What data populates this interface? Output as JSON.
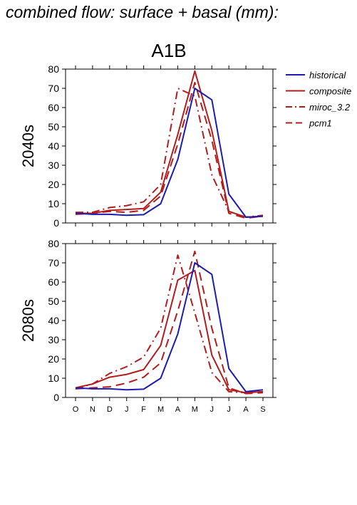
{
  "figure_title": "combined flow: surface + basal (mm):",
  "chart_data": [
    {
      "type": "line",
      "panel_title": "A1B",
      "row_label": "2040s",
      "ylim": [
        0,
        80
      ],
      "yticks": [
        0,
        10,
        20,
        30,
        40,
        50,
        60,
        70,
        80
      ],
      "categories": [
        "O",
        "N",
        "D",
        "J",
        "F",
        "M",
        "A",
        "M",
        "J",
        "J",
        "A",
        "S"
      ],
      "show_x_tick_labels": false,
      "series": [
        {
          "name": "historical",
          "color": "#1c1cb4",
          "dash": "solid",
          "values": [
            5,
            4.5,
            4.5,
            4,
            4.3,
            10,
            33,
            70,
            64,
            15,
            3,
            3.5
          ]
        },
        {
          "name": "composite",
          "color": "#b41c1c",
          "dash": "solid",
          "values": [
            5,
            5,
            6.5,
            7,
            7.5,
            16,
            46,
            79,
            48,
            6,
            3,
            3.5
          ]
        },
        {
          "name": "miroc_3.2",
          "color": "#b41c1c",
          "dash": "dashdot",
          "values": [
            5.5,
            5.5,
            8,
            9,
            11,
            20,
            70,
            66,
            25,
            6,
            3,
            4
          ]
        },
        {
          "name": "pcm1",
          "color": "#b41c1c",
          "dash": "dash",
          "values": [
            4.5,
            5,
            6,
            5.5,
            6.5,
            14,
            41,
            73,
            43,
            5,
            2.5,
            3.5
          ]
        }
      ]
    },
    {
      "type": "line",
      "panel_title": "",
      "row_label": "2080s",
      "ylim": [
        0,
        80
      ],
      "yticks": [
        0,
        10,
        20,
        30,
        40,
        50,
        60,
        70,
        80
      ],
      "categories": [
        "O",
        "N",
        "D",
        "J",
        "F",
        "M",
        "A",
        "M",
        "J",
        "J",
        "A",
        "S"
      ],
      "show_x_tick_labels": true,
      "series": [
        {
          "name": "historical",
          "color": "#1c1cb4",
          "dash": "solid",
          "values": [
            5,
            4.5,
            4.5,
            4,
            4.3,
            10,
            33,
            70,
            64,
            15,
            3,
            4
          ]
        },
        {
          "name": "composite",
          "color": "#b41c1c",
          "dash": "solid",
          "values": [
            5,
            7,
            10.5,
            12,
            14.5,
            27,
            61,
            66,
            22,
            4,
            2.5,
            3
          ]
        },
        {
          "name": "miroc_3.2",
          "color": "#b41c1c",
          "dash": "dashdot",
          "values": [
            4.5,
            7,
            12.5,
            16,
            21,
            36,
            74,
            44,
            13,
            3,
            2.5,
            3
          ]
        },
        {
          "name": "pcm1",
          "color": "#b41c1c",
          "dash": "dash",
          "values": [
            4.5,
            5,
            5.5,
            7.5,
            10.5,
            18,
            45,
            76,
            36,
            5,
            2,
            2.5
          ]
        }
      ]
    }
  ],
  "legend": {
    "placement": "right",
    "entries": [
      {
        "label": "historical",
        "color": "#1c1cb4",
        "dash": "solid"
      },
      {
        "label": "composite",
        "color": "#b41c1c",
        "dash": "solid"
      },
      {
        "label": "miroc_3.2",
        "color": "#b41c1c",
        "dash": "dashdot"
      },
      {
        "label": "pcm1",
        "color": "#b41c1c",
        "dash": "dash"
      }
    ]
  }
}
